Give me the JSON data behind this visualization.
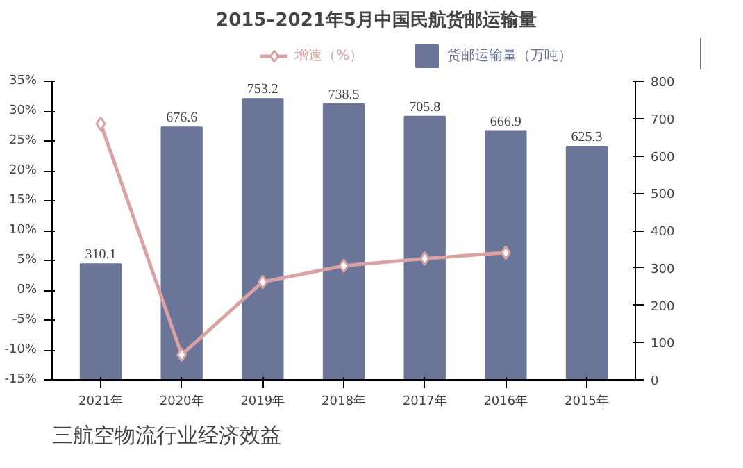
{
  "chart_data": {
    "type": "bar",
    "title": "2015–2021年5月中国民航货邮运输量",
    "categories": [
      "2021年",
      "2020年",
      "2019年",
      "2018年",
      "2017年",
      "2016年",
      "2015年"
    ],
    "series": [
      {
        "name": "增速（%）",
        "type": "line",
        "color": "#d9a3a3",
        "marker": "diamond",
        "values": [
          27.9,
          -10.8,
          1.4,
          4.1,
          5.3,
          6.3,
          null
        ]
      },
      {
        "name": "货邮运输量（万吨）",
        "axis": "y2",
        "color": "#6b7499",
        "values": [
          310.1,
          676.6,
          753.2,
          738.5,
          705.8,
          666.9,
          625.3
        ],
        "data_labels": true
      }
    ],
    "ylim": [
      -15,
      35
    ],
    "yticks": [
      {
        "value": -15,
        "label": "-15%"
      },
      {
        "value": -10,
        "label": "-10%"
      },
      {
        "value": -5,
        "label": "-5%"
      },
      {
        "value": 0,
        "label": "0%"
      },
      {
        "value": 5,
        "label": "5%"
      },
      {
        "value": 10,
        "label": "10%"
      },
      {
        "value": 15,
        "label": "15%"
      },
      {
        "value": 20,
        "label": "20%"
      },
      {
        "value": 25,
        "label": "25%"
      },
      {
        "value": 30,
        "label": "30%"
      },
      {
        "value": 35,
        "label": "35%"
      }
    ],
    "y2lim": [
      0,
      800
    ],
    "y2ticks": [
      0,
      100,
      200,
      300,
      400,
      500,
      600,
      700,
      800
    ],
    "legend": "top",
    "grid": false,
    "annotations": [
      "三航空物流行业经济效益"
    ]
  }
}
